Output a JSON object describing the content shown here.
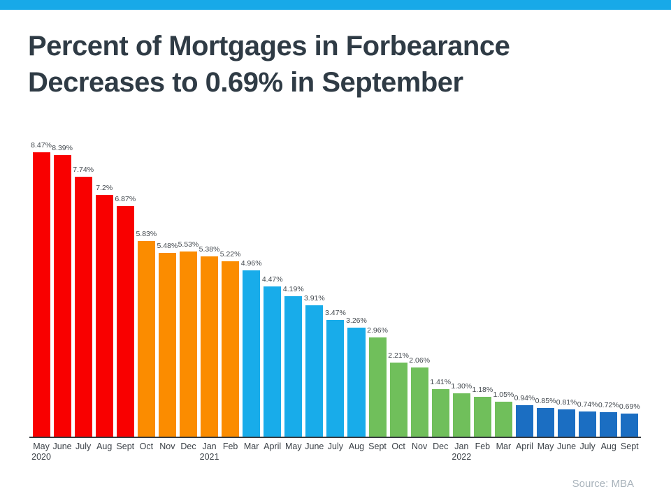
{
  "page": {
    "title_line1": "Percent of Mortgages in Forbearance",
    "title_line2": "Decreases to 0.69% in September",
    "source": "Source: MBA"
  },
  "colors": {
    "banner": "#18A9E8",
    "red": "#F90000",
    "orange": "#FB8C00",
    "light_blue": "#18ACEA",
    "green": "#70BF5B",
    "dark_blue": "#1B6EC2",
    "title_text": "#2F3B45",
    "axis_line": "#383C40",
    "value_label": "#42484E",
    "month_label": "#3B4147",
    "source_text": "#A9B3BB"
  },
  "chart_data": {
    "type": "bar",
    "title": "Percent of Mortgages in Forbearance Decreases to 0.69% in September",
    "xlabel": "",
    "ylabel": "",
    "unit": "percent",
    "ylim": [
      0,
      9
    ],
    "grid": false,
    "legend": false,
    "bars": [
      {
        "month": "May",
        "year": "2020",
        "label": "8.47%",
        "value": 8.47,
        "color": "red"
      },
      {
        "month": "June",
        "year": "",
        "label": "8.39%",
        "value": 8.39,
        "color": "red"
      },
      {
        "month": "July",
        "year": "",
        "label": "7.74%",
        "value": 7.74,
        "color": "red"
      },
      {
        "month": "Aug",
        "year": "",
        "label": "7.2%",
        "value": 7.2,
        "color": "red"
      },
      {
        "month": "Sept",
        "year": "",
        "label": "6.87%",
        "value": 6.87,
        "color": "red"
      },
      {
        "month": "Oct",
        "year": "",
        "label": "5.83%",
        "value": 5.83,
        "color": "orange"
      },
      {
        "month": "Nov",
        "year": "",
        "label": "5.48%",
        "value": 5.48,
        "color": "orange"
      },
      {
        "month": "Dec",
        "year": "",
        "label": "5.53%",
        "value": 5.53,
        "color": "orange"
      },
      {
        "month": "Jan",
        "year": "2021",
        "label": "5.38%",
        "value": 5.38,
        "color": "orange"
      },
      {
        "month": "Feb",
        "year": "",
        "label": "5.22%",
        "value": 5.22,
        "color": "orange"
      },
      {
        "month": "Mar",
        "year": "",
        "label": "4.96%",
        "value": 4.96,
        "color": "light_blue"
      },
      {
        "month": "April",
        "year": "",
        "label": "4.47%",
        "value": 4.47,
        "color": "light_blue"
      },
      {
        "month": "May",
        "year": "",
        "label": "4.19%",
        "value": 4.19,
        "color": "light_blue"
      },
      {
        "month": "June",
        "year": "",
        "label": "3.91%",
        "value": 3.91,
        "color": "light_blue"
      },
      {
        "month": "July",
        "year": "",
        "label": "3.47%",
        "value": 3.47,
        "color": "light_blue"
      },
      {
        "month": "Aug",
        "year": "",
        "label": "3.26%",
        "value": 3.26,
        "color": "light_blue"
      },
      {
        "month": "Sept",
        "year": "",
        "label": "2.96%",
        "value": 2.96,
        "color": "green"
      },
      {
        "month": "Oct",
        "year": "",
        "label": "2.21%",
        "value": 2.21,
        "color": "green"
      },
      {
        "month": "Nov",
        "year": "",
        "label": "2.06%",
        "value": 2.06,
        "color": "green"
      },
      {
        "month": "Dec",
        "year": "",
        "label": "1.41%",
        "value": 1.41,
        "color": "green"
      },
      {
        "month": "Jan",
        "year": "2022",
        "label": "1.30%",
        "value": 1.3,
        "color": "green"
      },
      {
        "month": "Feb",
        "year": "",
        "label": "1.18%",
        "value": 1.18,
        "color": "green"
      },
      {
        "month": "Mar",
        "year": "",
        "label": "1.05%",
        "value": 1.05,
        "color": "green"
      },
      {
        "month": "April",
        "year": "",
        "label": "0.94%",
        "value": 0.94,
        "color": "dark_blue"
      },
      {
        "month": "May",
        "year": "",
        "label": "0.85%",
        "value": 0.85,
        "color": "dark_blue"
      },
      {
        "month": "June",
        "year": "",
        "label": "0.81%",
        "value": 0.81,
        "color": "dark_blue"
      },
      {
        "month": "July",
        "year": "",
        "label": "0.74%",
        "value": 0.74,
        "color": "dark_blue"
      },
      {
        "month": "Aug",
        "year": "",
        "label": "0.72%",
        "value": 0.72,
        "color": "dark_blue"
      },
      {
        "month": "Sept",
        "year": "",
        "label": "0.69%",
        "value": 0.69,
        "color": "dark_blue"
      }
    ]
  }
}
